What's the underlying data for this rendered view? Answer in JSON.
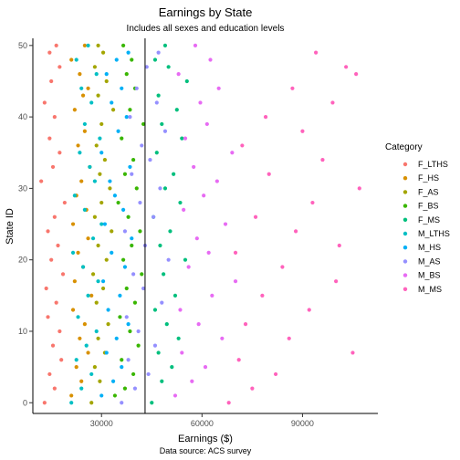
{
  "chart_data": {
    "type": "scatter",
    "title": "Earnings by State",
    "subtitle": "Includes all sexes and education levels",
    "xlabel": "Earnings ($)",
    "ylabel": "State ID",
    "caption": "Data source: ACS survey",
    "xlim": [
      9500,
      112500
    ],
    "ylim": [
      -1.5,
      51
    ],
    "x_ticks": [
      30000,
      60000,
      90000
    ],
    "y_ticks": [
      0,
      10,
      20,
      30,
      40,
      50
    ],
    "x_tick_labels": [
      "30000",
      "60000",
      "90000"
    ],
    "y_tick_labels": [
      "0",
      "10",
      "20",
      "30",
      "40",
      "50"
    ],
    "vline": 43000,
    "grid": false,
    "legend": {
      "title": "Category",
      "position": "right"
    },
    "series": [
      {
        "name": "F_LTHS",
        "color": "#F8766D",
        "points": [
          [
            13000,
            0
          ],
          [
            16000,
            2
          ],
          [
            14500,
            4
          ],
          [
            18000,
            6
          ],
          [
            15500,
            8
          ],
          [
            17500,
            10
          ],
          [
            14000,
            12
          ],
          [
            16500,
            14
          ],
          [
            13500,
            16
          ],
          [
            18500,
            18
          ],
          [
            15000,
            20
          ],
          [
            17000,
            22
          ],
          [
            14000,
            24
          ],
          [
            16000,
            26
          ],
          [
            19000,
            28
          ],
          [
            12000,
            31
          ],
          [
            15500,
            33
          ],
          [
            17500,
            35
          ],
          [
            14500,
            37
          ],
          [
            16000,
            40
          ],
          [
            13000,
            42
          ],
          [
            15000,
            45
          ],
          [
            17500,
            47
          ],
          [
            14500,
            49
          ],
          [
            16500,
            50
          ]
        ]
      },
      {
        "name": "F_HS",
        "color": "#D89000",
        "points": [
          [
            21000,
            1
          ],
          [
            24000,
            3
          ],
          [
            22500,
            5
          ],
          [
            26000,
            7
          ],
          [
            23500,
            9
          ],
          [
            25000,
            11
          ],
          [
            21500,
            13
          ],
          [
            27000,
            15
          ],
          [
            22000,
            17
          ],
          [
            24500,
            19
          ],
          [
            23000,
            21
          ],
          [
            26000,
            23
          ],
          [
            21500,
            25
          ],
          [
            25500,
            27
          ],
          [
            22500,
            29
          ],
          [
            24000,
            31
          ],
          [
            26500,
            33
          ],
          [
            23000,
            36
          ],
          [
            25000,
            38
          ],
          [
            22000,
            41
          ],
          [
            24500,
            43
          ],
          [
            26000,
            44
          ],
          [
            23500,
            46
          ],
          [
            21000,
            48
          ],
          [
            25000,
            50
          ]
        ]
      },
      {
        "name": "F_AS",
        "color": "#A3A500",
        "points": [
          [
            27000,
            0
          ],
          [
            29500,
            3
          ],
          [
            28000,
            5
          ],
          [
            31000,
            7
          ],
          [
            29000,
            9
          ],
          [
            32000,
            11
          ],
          [
            28500,
            14
          ],
          [
            30500,
            16
          ],
          [
            27500,
            18
          ],
          [
            31500,
            20
          ],
          [
            29000,
            22
          ],
          [
            33000,
            24
          ],
          [
            28000,
            26
          ],
          [
            30000,
            28
          ],
          [
            32500,
            30
          ],
          [
            29500,
            32
          ],
          [
            31000,
            34
          ],
          [
            28500,
            36
          ],
          [
            30000,
            39
          ],
          [
            33500,
            41
          ],
          [
            29000,
            43
          ],
          [
            31500,
            45
          ],
          [
            28000,
            47
          ],
          [
            30500,
            49
          ],
          [
            29000,
            50
          ]
        ]
      },
      {
        "name": "F_BS",
        "color": "#39B600",
        "points": [
          [
            34000,
            1
          ],
          [
            37000,
            2
          ],
          [
            39500,
            4
          ],
          [
            36000,
            6
          ],
          [
            41000,
            8
          ],
          [
            38500,
            10
          ],
          [
            35500,
            12
          ],
          [
            40000,
            14
          ],
          [
            37500,
            16
          ],
          [
            42000,
            18
          ],
          [
            36500,
            20
          ],
          [
            39000,
            22
          ],
          [
            41500,
            24
          ],
          [
            38000,
            26
          ],
          [
            35000,
            28
          ],
          [
            40500,
            30
          ],
          [
            37000,
            32
          ],
          [
            39500,
            34
          ],
          [
            36000,
            37
          ],
          [
            42500,
            39
          ],
          [
            38500,
            41
          ],
          [
            40000,
            44
          ],
          [
            37500,
            46
          ],
          [
            39000,
            48
          ],
          [
            36500,
            50
          ]
        ]
      },
      {
        "name": "F_MS",
        "color": "#00BF7D",
        "points": [
          [
            45000,
            0
          ],
          [
            48000,
            3
          ],
          [
            51000,
            5
          ],
          [
            47000,
            7
          ],
          [
            53000,
            9
          ],
          [
            49500,
            11
          ],
          [
            46000,
            13
          ],
          [
            52000,
            15
          ],
          [
            48500,
            18
          ],
          [
            55000,
            20
          ],
          [
            47500,
            22
          ],
          [
            50500,
            24
          ],
          [
            45500,
            26
          ],
          [
            53500,
            28
          ],
          [
            49000,
            30
          ],
          [
            51500,
            32
          ],
          [
            46500,
            35
          ],
          [
            54000,
            37
          ],
          [
            48000,
            39
          ],
          [
            52500,
            41
          ],
          [
            47000,
            43
          ],
          [
            55500,
            45
          ],
          [
            50000,
            47
          ],
          [
            46000,
            48
          ],
          [
            49000,
            50
          ]
        ]
      },
      {
        "name": "M_LTHS",
        "color": "#00BFC4",
        "points": [
          [
            21000,
            0
          ],
          [
            24000,
            2
          ],
          [
            27000,
            4
          ],
          [
            22500,
            6
          ],
          [
            25500,
            8
          ],
          [
            28500,
            10
          ],
          [
            23000,
            12
          ],
          [
            26000,
            15
          ],
          [
            29000,
            17
          ],
          [
            24500,
            19
          ],
          [
            21500,
            21
          ],
          [
            27500,
            23
          ],
          [
            30000,
            25
          ],
          [
            25000,
            27
          ],
          [
            22000,
            29
          ],
          [
            28000,
            31
          ],
          [
            26500,
            33
          ],
          [
            23500,
            35
          ],
          [
            29500,
            37
          ],
          [
            25000,
            39
          ],
          [
            27000,
            42
          ],
          [
            24000,
            44
          ],
          [
            28500,
            46
          ],
          [
            22500,
            48
          ],
          [
            26000,
            50
          ]
        ]
      },
      {
        "name": "M_HS",
        "color": "#00B0F6",
        "points": [
          [
            30000,
            1
          ],
          [
            33500,
            3
          ],
          [
            36000,
            5
          ],
          [
            31500,
            7
          ],
          [
            34500,
            9
          ],
          [
            38000,
            11
          ],
          [
            32000,
            13
          ],
          [
            35500,
            15
          ],
          [
            30500,
            17
          ],
          [
            37000,
            19
          ],
          [
            33000,
            21
          ],
          [
            39000,
            23
          ],
          [
            31000,
            25
          ],
          [
            36500,
            27
          ],
          [
            34000,
            29
          ],
          [
            32500,
            31
          ],
          [
            38500,
            33
          ],
          [
            30000,
            35
          ],
          [
            35000,
            38
          ],
          [
            37500,
            40
          ],
          [
            33000,
            42
          ],
          [
            36000,
            44
          ],
          [
            31500,
            46
          ],
          [
            34500,
            48
          ],
          [
            38000,
            49
          ]
        ]
      },
      {
        "name": "M_AS",
        "color": "#9590FF",
        "points": [
          [
            36000,
            0
          ],
          [
            40000,
            2
          ],
          [
            44000,
            4
          ],
          [
            38000,
            6
          ],
          [
            46000,
            8
          ],
          [
            41000,
            10
          ],
          [
            37500,
            12
          ],
          [
            48000,
            14
          ],
          [
            42500,
            16
          ],
          [
            39500,
            18
          ],
          [
            50000,
            20
          ],
          [
            43000,
            22
          ],
          [
            37000,
            24
          ],
          [
            45500,
            26
          ],
          [
            41500,
            28
          ],
          [
            47500,
            30
          ],
          [
            39000,
            32
          ],
          [
            44500,
            34
          ],
          [
            42000,
            36
          ],
          [
            49000,
            38
          ],
          [
            38500,
            40
          ],
          [
            46500,
            42
          ],
          [
            40500,
            44
          ],
          [
            43500,
            47
          ],
          [
            47000,
            49
          ]
        ]
      },
      {
        "name": "M_BS",
        "color": "#E76BF3",
        "points": [
          [
            52000,
            1
          ],
          [
            57000,
            3
          ],
          [
            61000,
            5
          ],
          [
            54000,
            7
          ],
          [
            66000,
            9
          ],
          [
            59000,
            11
          ],
          [
            53500,
            13
          ],
          [
            63000,
            15
          ],
          [
            70000,
            17
          ],
          [
            56000,
            19
          ],
          [
            62000,
            21
          ],
          [
            58500,
            23
          ],
          [
            67000,
            25
          ],
          [
            54500,
            27
          ],
          [
            60500,
            29
          ],
          [
            64500,
            31
          ],
          [
            57500,
            33
          ],
          [
            69000,
            35
          ],
          [
            55000,
            37
          ],
          [
            61500,
            39
          ],
          [
            59500,
            42
          ],
          [
            65000,
            44
          ],
          [
            53000,
            46
          ],
          [
            62500,
            48
          ],
          [
            58000,
            50
          ]
        ]
      },
      {
        "name": "M_MS",
        "color": "#FF62BC",
        "points": [
          [
            68000,
            0
          ],
          [
            75000,
            2
          ],
          [
            82000,
            4
          ],
          [
            71000,
            6
          ],
          [
            105000,
            7
          ],
          [
            86000,
            9
          ],
          [
            73000,
            11
          ],
          [
            92000,
            13
          ],
          [
            78000,
            15
          ],
          [
            100000,
            17
          ],
          [
            84000,
            19
          ],
          [
            70000,
            21
          ],
          [
            101000,
            22
          ],
          [
            88000,
            24
          ],
          [
            76000,
            26
          ],
          [
            93000,
            28
          ],
          [
            107000,
            30
          ],
          [
            80000,
            32
          ],
          [
            96000,
            34
          ],
          [
            72000,
            36
          ],
          [
            90000,
            38
          ],
          [
            79000,
            40
          ],
          [
            99000,
            42
          ],
          [
            87000,
            44
          ],
          [
            106000,
            46
          ],
          [
            103000,
            47
          ],
          [
            94000,
            49
          ]
        ]
      }
    ]
  }
}
